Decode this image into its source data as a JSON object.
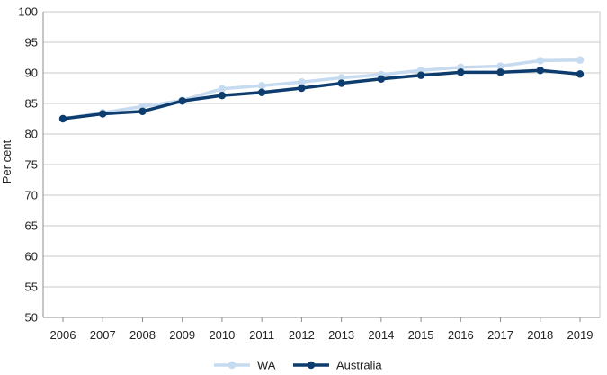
{
  "chart_data": {
    "type": "line",
    "title": "",
    "xlabel": "",
    "ylabel": "Per cent",
    "x": [
      "2006",
      "2007",
      "2008",
      "2009",
      "2010",
      "2011",
      "2012",
      "2013",
      "2014",
      "2015",
      "2016",
      "2017",
      "2018",
      "2019"
    ],
    "ylim": [
      50,
      100
    ],
    "yticks": [
      50,
      55,
      60,
      65,
      70,
      75,
      80,
      85,
      90,
      95,
      100
    ],
    "grid": true,
    "legend_position": "bottom",
    "series": [
      {
        "name": "WA",
        "color": "#c6dbef",
        "values": [
          82.5,
          83.5,
          84.5,
          85.5,
          87.4,
          87.9,
          88.5,
          89.2,
          89.7,
          90.4,
          90.9,
          91.1,
          92.0,
          92.1
        ]
      },
      {
        "name": "Australia",
        "color": "#0d3d6e",
        "values": [
          82.5,
          83.3,
          83.7,
          85.4,
          86.3,
          86.8,
          87.5,
          88.3,
          89.0,
          89.6,
          90.1,
          90.1,
          90.4,
          89.8
        ]
      }
    ]
  }
}
